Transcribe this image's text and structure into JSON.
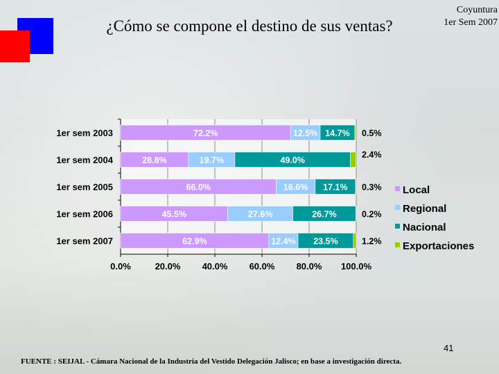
{
  "title": "¿Cómo se compone el destino de sus ventas?",
  "corner": {
    "line1": "Coyuntura",
    "line2": "1er Sem 2007"
  },
  "page_number": "41",
  "source": "FUENTE : SEIJAL - Cámara Nacional de la Industria del Vestido Delegación Jalisco; en base a investigación directa.",
  "colors": {
    "accent_blue": "#0000ff",
    "accent_red": "#ff0000"
  },
  "chart_data": {
    "type": "bar",
    "orientation": "horizontal",
    "stacked": true,
    "percent": true,
    "categories": [
      "1er sem 2003",
      "1er sem 2004",
      "1er sem 2005",
      "1er sem 2006",
      "1er sem 2007"
    ],
    "series": [
      {
        "name": "Local",
        "color": "#cc99ff",
        "values": [
          72.2,
          28.8,
          66.0,
          45.5,
          62.9
        ],
        "labels": [
          "72.2%",
          "28.8%",
          "66.0%",
          "45.5%",
          "62.9%"
        ]
      },
      {
        "name": "Regional",
        "color": "#99ccff",
        "values": [
          12.5,
          19.7,
          16.6,
          27.6,
          12.4
        ],
        "labels": [
          "12.5%",
          "19.7%",
          "16.6%",
          "27.6%",
          "12.4%"
        ]
      },
      {
        "name": "Nacional",
        "color": "#009999",
        "values": [
          14.7,
          49.0,
          17.1,
          26.7,
          23.5
        ],
        "labels": [
          "14.7%",
          "49.0%",
          "17.1%",
          "26.7%",
          "23.5%"
        ]
      },
      {
        "name": "Exportaciones",
        "color": "#99cc00",
        "values": [
          0.5,
          2.4,
          0.3,
          0.2,
          1.2
        ],
        "labels": [
          "0.5%",
          "2.4%",
          "0.3%",
          "0.2%",
          "1.2%"
        ]
      }
    ],
    "xlim": [
      0,
      100
    ],
    "xticks": [
      "0.0%",
      "20.0%",
      "40.0%",
      "60.0%",
      "80.0%",
      "100.0%"
    ],
    "legend": {
      "position": "right",
      "entries": [
        "Local",
        "Regional",
        "Nacional",
        "Exportaciones"
      ]
    },
    "grid": true
  }
}
